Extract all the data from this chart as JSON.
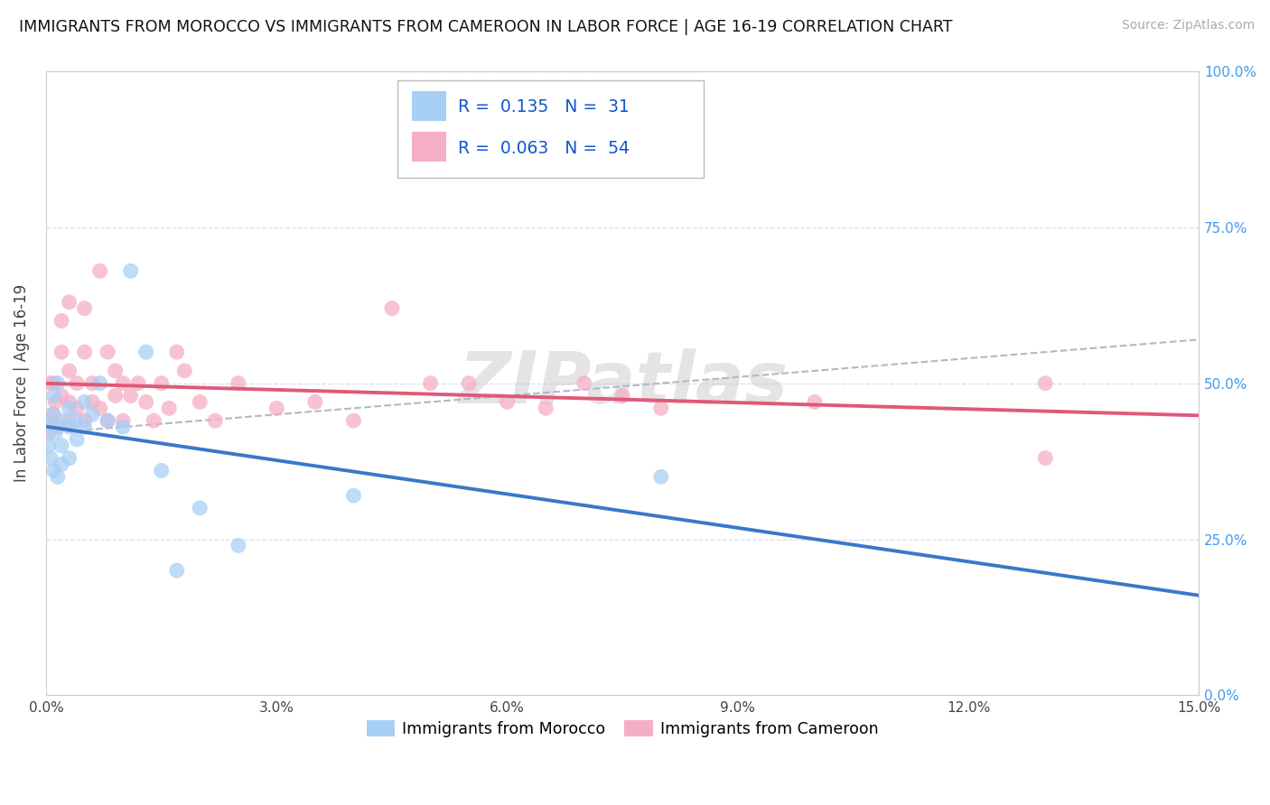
{
  "title": "IMMIGRANTS FROM MOROCCO VS IMMIGRANTS FROM CAMEROON IN LABOR FORCE | AGE 16-19 CORRELATION CHART",
  "source": "Source: ZipAtlas.com",
  "ylabel": "In Labor Force | Age 16-19",
  "xlim": [
    0.0,
    0.15
  ],
  "ylim": [
    0.0,
    1.0
  ],
  "xtick_positions": [
    0.0,
    0.03,
    0.06,
    0.09,
    0.12,
    0.15
  ],
  "xticklabels": [
    "0.0%",
    "3.0%",
    "6.0%",
    "9.0%",
    "12.0%",
    "15.0%"
  ],
  "ytick_positions": [
    0.0,
    0.25,
    0.5,
    0.75,
    1.0
  ],
  "yticklabels_right": [
    "0.0%",
    "25.0%",
    "50.0%",
    "75.0%",
    "100.0%"
  ],
  "morocco_color": "#a8cff5",
  "cameroon_color": "#f5afc5",
  "morocco_line_color": "#3a78c9",
  "cameroon_line_color": "#e05878",
  "dashed_color": "#b0b8c8",
  "morocco_R": 0.135,
  "morocco_N": 31,
  "cameroon_R": 0.063,
  "cameroon_N": 54,
  "R_N_color": "#1155cc",
  "watermark": "ZIPatlas",
  "background_color": "#ffffff",
  "grid_color": "#d8dde8",
  "tick_color": "#4499ee",
  "title_color": "#111111",
  "source_color": "#aaaaaa",
  "morocco_x": [
    0.0003,
    0.0005,
    0.0006,
    0.0008,
    0.001,
    0.001,
    0.0012,
    0.0015,
    0.0015,
    0.002,
    0.002,
    0.002,
    0.003,
    0.003,
    0.003,
    0.004,
    0.004,
    0.005,
    0.005,
    0.006,
    0.007,
    0.008,
    0.01,
    0.011,
    0.013,
    0.015,
    0.017,
    0.02,
    0.025,
    0.04,
    0.08
  ],
  "morocco_y": [
    0.4,
    0.43,
    0.38,
    0.45,
    0.36,
    0.48,
    0.42,
    0.5,
    0.35,
    0.44,
    0.4,
    0.37,
    0.43,
    0.46,
    0.38,
    0.44,
    0.41,
    0.47,
    0.43,
    0.45,
    0.5,
    0.44,
    0.43,
    0.68,
    0.55,
    0.36,
    0.2,
    0.3,
    0.24,
    0.32,
    0.35
  ],
  "cameroon_x": [
    0.0003,
    0.0005,
    0.0007,
    0.001,
    0.001,
    0.0012,
    0.0015,
    0.002,
    0.002,
    0.002,
    0.003,
    0.003,
    0.003,
    0.003,
    0.004,
    0.004,
    0.005,
    0.005,
    0.005,
    0.006,
    0.006,
    0.007,
    0.007,
    0.008,
    0.008,
    0.009,
    0.009,
    0.01,
    0.01,
    0.011,
    0.012,
    0.013,
    0.014,
    0.015,
    0.016,
    0.017,
    0.018,
    0.02,
    0.022,
    0.025,
    0.03,
    0.035,
    0.04,
    0.045,
    0.05,
    0.055,
    0.06,
    0.065,
    0.07,
    0.075,
    0.08,
    0.1,
    0.13,
    0.13
  ],
  "cameroon_y": [
    0.42,
    0.44,
    0.5,
    0.45,
    0.5,
    0.47,
    0.43,
    0.55,
    0.6,
    0.48,
    0.44,
    0.52,
    0.47,
    0.63,
    0.5,
    0.46,
    0.62,
    0.55,
    0.44,
    0.5,
    0.47,
    0.68,
    0.46,
    0.55,
    0.44,
    0.52,
    0.48,
    0.44,
    0.5,
    0.48,
    0.5,
    0.47,
    0.44,
    0.5,
    0.46,
    0.55,
    0.52,
    0.47,
    0.44,
    0.5,
    0.46,
    0.47,
    0.44,
    0.62,
    0.5,
    0.5,
    0.47,
    0.46,
    0.5,
    0.48,
    0.46,
    0.47,
    0.38,
    0.5
  ]
}
